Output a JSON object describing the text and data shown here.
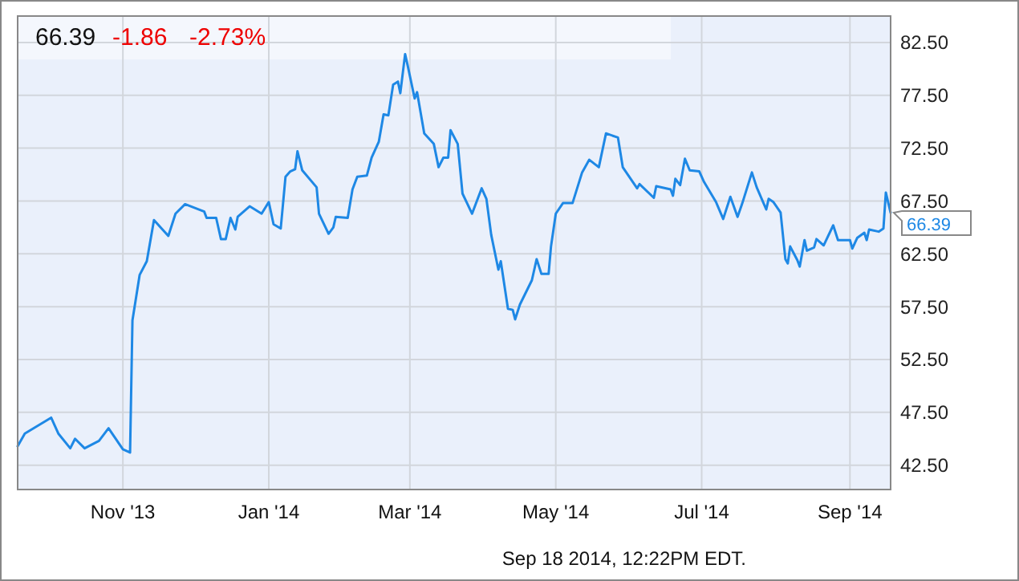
{
  "chart_data": {
    "type": "line",
    "x": [
      "2013-09-18",
      "2013-09-21",
      "2013-10-02",
      "2013-10-05",
      "2013-10-10",
      "2013-10-12",
      "2013-10-16",
      "2013-10-22",
      "2013-10-26",
      "2013-11-01",
      "2013-11-04",
      "2013-11-05",
      "2013-11-08",
      "2013-11-11",
      "2013-11-14",
      "2013-11-20",
      "2013-11-23",
      "2013-11-27",
      "2013-12-05",
      "2013-12-06",
      "2013-12-10",
      "2013-12-12",
      "2013-12-14",
      "2013-12-16",
      "2013-12-18",
      "2013-12-19",
      "2013-12-24",
      "2013-12-29",
      "2014-01-01",
      "2014-01-03",
      "2014-01-06",
      "2014-01-08",
      "2014-01-10",
      "2014-01-12",
      "2014-01-13",
      "2014-01-15",
      "2014-01-21",
      "2014-01-22",
      "2014-01-26",
      "2014-01-28",
      "2014-01-29",
      "2014-02-03",
      "2014-02-05",
      "2014-02-07",
      "2014-02-11",
      "2014-02-13",
      "2014-02-16",
      "2014-02-18",
      "2014-02-20",
      "2014-02-22",
      "2014-02-24",
      "2014-02-25",
      "2014-02-27",
      "2014-02-28",
      "2014-03-03",
      "2014-03-04",
      "2014-03-07",
      "2014-03-11",
      "2014-03-13",
      "2014-03-15",
      "2014-03-17",
      "2014-03-18",
      "2014-03-21",
      "2014-03-23",
      "2014-03-27",
      "2014-03-31",
      "2014-04-02",
      "2014-04-04",
      "2014-04-07",
      "2014-04-08",
      "2014-04-11",
      "2014-04-13",
      "2014-04-14",
      "2014-04-16",
      "2014-04-21",
      "2014-04-23",
      "2014-04-25",
      "2014-04-28",
      "2014-04-29",
      "2014-05-01",
      "2014-05-04",
      "2014-05-08",
      "2014-05-12",
      "2014-05-15",
      "2014-05-19",
      "2014-05-22",
      "2014-05-27",
      "2014-05-29",
      "2014-06-04",
      "2014-06-05",
      "2014-06-11",
      "2014-06-12",
      "2014-06-18",
      "2014-06-19",
      "2014-06-20",
      "2014-06-22",
      "2014-06-24",
      "2014-06-26",
      "2014-06-30",
      "2014-07-02",
      "2014-07-07",
      "2014-07-10",
      "2014-07-13",
      "2014-07-16",
      "2014-07-18",
      "2014-07-22",
      "2014-07-24",
      "2014-07-28",
      "2014-07-29",
      "2014-07-31",
      "2014-08-03",
      "2014-08-05",
      "2014-08-06",
      "2014-08-07",
      "2014-08-10",
      "2014-08-11",
      "2014-08-13",
      "2014-08-14",
      "2014-08-17",
      "2014-08-18",
      "2014-08-21",
      "2014-08-25",
      "2014-08-27",
      "2014-09-01",
      "2014-09-02",
      "2014-09-04",
      "2014-09-07",
      "2014-09-08",
      "2014-09-09",
      "2014-09-13",
      "2014-09-15",
      "2014-09-16",
      "2014-09-18"
    ],
    "series": [
      {
        "color": "#1e88e5",
        "values": [
          44.3,
          45.5,
          47.0,
          45.5,
          44.1,
          45.0,
          44.1,
          44.8,
          46.0,
          44.0,
          43.7,
          56.2,
          60.5,
          61.8,
          65.7,
          64.2,
          66.3,
          67.2,
          66.5,
          65.9,
          65.9,
          63.9,
          63.9,
          65.9,
          64.8,
          66.0,
          67.0,
          66.3,
          67.4,
          65.3,
          64.9,
          69.8,
          70.3,
          70.5,
          72.2,
          70.4,
          68.8,
          66.3,
          64.4,
          65.0,
          66.0,
          65.9,
          68.6,
          69.8,
          69.9,
          71.6,
          73.1,
          75.7,
          75.6,
          78.5,
          78.8,
          77.7,
          81.4,
          80.4,
          77.2,
          77.8,
          73.9,
          72.9,
          70.7,
          71.6,
          71.6,
          74.2,
          72.9,
          68.2,
          66.3,
          68.7,
          67.7,
          64.3,
          61.0,
          61.8,
          57.3,
          57.2,
          56.3,
          57.7,
          60.0,
          62.0,
          60.6,
          60.6,
          63.2,
          66.3,
          67.3,
          67.3,
          70.2,
          71.4,
          70.7,
          73.9,
          73.5,
          70.7,
          68.7,
          69.1,
          67.8,
          68.9,
          68.6,
          68.0,
          69.6,
          69.0,
          71.5,
          70.4,
          70.3,
          69.3,
          67.4,
          65.8,
          67.9,
          66.0,
          67.3,
          70.2,
          68.8,
          66.7,
          67.7,
          67.4,
          66.4,
          62.0,
          61.6,
          63.2,
          61.9,
          61.3,
          63.8,
          62.8,
          63.1,
          63.9,
          63.3,
          65.2,
          63.8,
          63.8,
          63.0,
          64.0,
          64.5,
          63.8,
          64.8,
          64.6,
          64.9,
          68.3,
          66.39
        ]
      }
    ],
    "xlim": [
      "2013-09-18",
      "2014-09-18"
    ],
    "xticks": [
      {
        "value": "2013-11-01",
        "label": "Nov '13"
      },
      {
        "value": "2014-01-01",
        "label": "Jan '14"
      },
      {
        "value": "2014-03-01",
        "label": "Mar '14"
      },
      {
        "value": "2014-05-01",
        "label": "May '14"
      },
      {
        "value": "2014-07-01",
        "label": "Jul '14"
      },
      {
        "value": "2014-09-01",
        "label": "Sep '14"
      }
    ],
    "ylim": [
      40.2,
      85
    ],
    "yticks": [
      {
        "value": 42.5,
        "label": "42.50"
      },
      {
        "value": 47.5,
        "label": "47.50"
      },
      {
        "value": 52.5,
        "label": "52.50"
      },
      {
        "value": 57.5,
        "label": "57.50"
      },
      {
        "value": 62.5,
        "label": "62.50"
      },
      {
        "value": 67.5,
        "label": "67.50"
      },
      {
        "value": 72.5,
        "label": "72.50"
      },
      {
        "value": 77.5,
        "label": "77.50"
      },
      {
        "value": 82.5,
        "label": "82.50"
      }
    ],
    "grid": true,
    "annotations": [
      "66.39",
      "-1.86",
      "-2.73%",
      {
        "text": "66.39",
        "x": "2014-09-18",
        "y": 66.39
      },
      "Sep 18 2014, 12:22PM EDT."
    ]
  }
}
